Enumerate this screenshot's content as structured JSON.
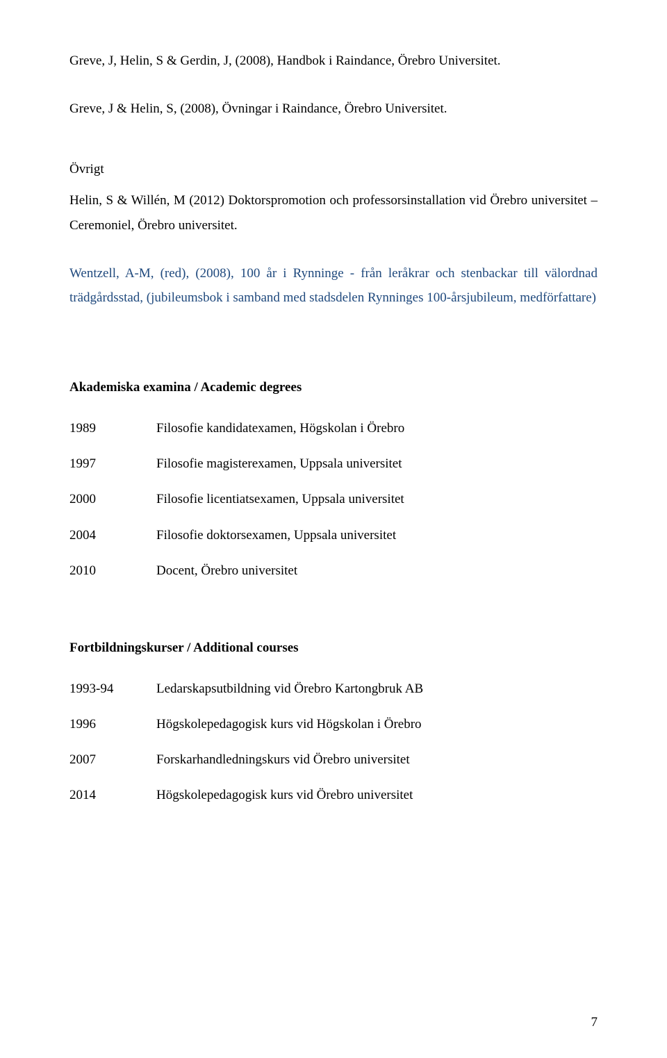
{
  "refs": {
    "r1": "Greve, J, Helin, S & Gerdin, J, (2008), Handbok i Raindance, Örebro Universitet.",
    "r2": "Greve, J & Helin, S, (2008), Övningar i Raindance, Örebro Universitet.",
    "ovrigt_heading": "Övrigt",
    "r3": "Helin, S & Willén, M (2012) Doktorspromotion och professorsinstallation vid Örebro universitet – Ceremoniel, Örebro universitet.",
    "r4": "Wentzell, A-M, (red), (2008), 100 år i Rynninge - från leråkrar och stenbackar till välordnad trädgårdsstad, (jubileumsbok i samband med stadsdelen Rynninges 100-årsjubileum, medförfattare)"
  },
  "section1": {
    "heading": "Akademiska examina / Academic degrees",
    "items": [
      {
        "year": "1989",
        "text": "Filosofie kandidatexamen, Högskolan i Örebro"
      },
      {
        "year": "1997",
        "text": "Filosofie magisterexamen, Uppsala universitet"
      },
      {
        "year": "2000",
        "text": "Filosofie licentiatsexamen, Uppsala universitet"
      },
      {
        "year": "2004",
        "text": "Filosofie doktorsexamen, Uppsala universitet"
      },
      {
        "year": "2010",
        "text": "Docent, Örebro universitet"
      }
    ]
  },
  "section2": {
    "heading": "Fortbildningskurser / Additional courses",
    "items": [
      {
        "year": "1993-94",
        "text": "Ledarskapsutbildning vid Örebro Kartongbruk AB"
      },
      {
        "year": "1996",
        "text": "Högskolepedagogisk kurs vid Högskolan i Örebro"
      },
      {
        "year": "2007",
        "text": "Forskarhandledningskurs vid Örebro universitet"
      },
      {
        "year": "2014",
        "text": "Högskolepedagogisk kurs vid Örebro universitet"
      }
    ]
  },
  "page_number": "7",
  "colors": {
    "text": "#000000",
    "link_blue": "#1f497d",
    "background": "#ffffff"
  },
  "typography": {
    "font_family": "Times New Roman",
    "font_size_pt": 14,
    "line_height": 1.85
  }
}
